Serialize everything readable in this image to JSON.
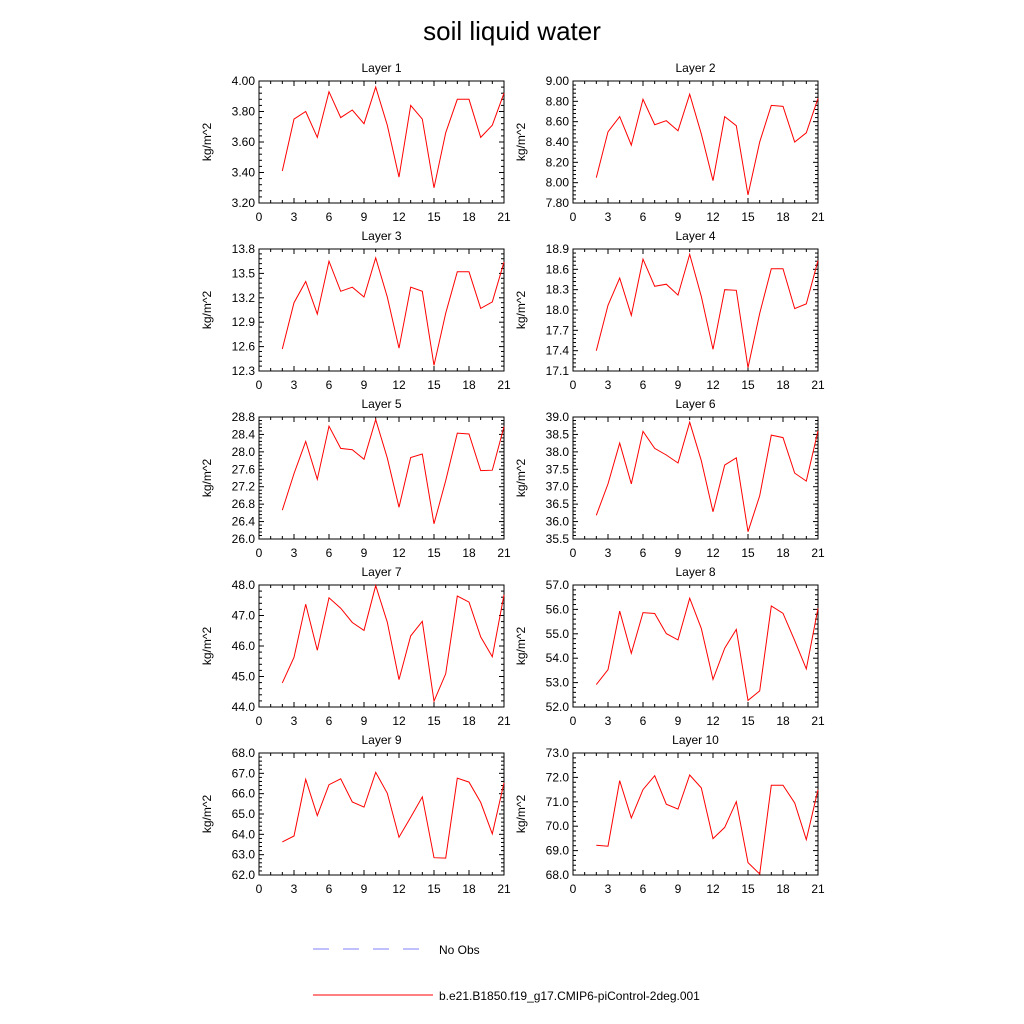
{
  "figure": {
    "title": "soil liquid water",
    "legend": [
      {
        "label": "No Obs",
        "color": "#8080ff",
        "style": "dashed"
      },
      {
        "label": "b.e21.B1850.f19_g17.CMIP6-piControl-2deg.001",
        "color": "#ff0000",
        "style": "solid"
      }
    ]
  },
  "chart_data": [
    {
      "type": "line",
      "title": "Layer 1",
      "ylabel": "kg/m^2",
      "xlim": [
        0,
        21
      ],
      "ylim": [
        3.2,
        4.0
      ],
      "xticks": [
        "0",
        "3",
        "6",
        "9",
        "12",
        "15",
        "18",
        "21"
      ],
      "yticks": [
        "3.20",
        "3.40",
        "3.60",
        "3.80",
        "4.00"
      ],
      "x": [
        2,
        3,
        4,
        5,
        6,
        7,
        8,
        9,
        10,
        11,
        12,
        13,
        14,
        15,
        16,
        17,
        18,
        19,
        20,
        21
      ],
      "series": [
        {
          "values": [
            3.41,
            3.75,
            3.8,
            3.63,
            3.93,
            3.76,
            3.81,
            3.72,
            3.96,
            3.71,
            3.37,
            3.84,
            3.75,
            3.3,
            3.66,
            3.88,
            3.88,
            3.63,
            3.71,
            3.92
          ]
        }
      ]
    },
    {
      "type": "line",
      "title": "Layer 2",
      "ylabel": "kg/m^2",
      "xlim": [
        0,
        21
      ],
      "ylim": [
        7.8,
        9.0
      ],
      "xticks": [
        "0",
        "3",
        "6",
        "9",
        "12",
        "15",
        "18",
        "21"
      ],
      "yticks": [
        "7.80",
        "8.00",
        "8.20",
        "8.40",
        "8.60",
        "8.80",
        "9.00"
      ],
      "x": [
        2,
        3,
        4,
        5,
        6,
        7,
        8,
        9,
        10,
        11,
        12,
        13,
        14,
        15,
        16,
        17,
        18,
        19,
        20,
        21
      ],
      "series": [
        {
          "values": [
            8.05,
            8.5,
            8.65,
            8.37,
            8.82,
            8.57,
            8.61,
            8.51,
            8.87,
            8.48,
            8.02,
            8.65,
            8.56,
            7.88,
            8.4,
            8.76,
            8.75,
            8.4,
            8.49,
            8.83
          ]
        }
      ]
    },
    {
      "type": "line",
      "title": "Layer 3",
      "ylabel": "kg/m^2",
      "xlim": [
        0,
        21
      ],
      "ylim": [
        12.3,
        13.8
      ],
      "xticks": [
        "0",
        "3",
        "6",
        "9",
        "12",
        "15",
        "18",
        "21"
      ],
      "yticks": [
        "12.3",
        "12.6",
        "12.9",
        "13.2",
        "13.5",
        "13.8"
      ],
      "x": [
        2,
        3,
        4,
        5,
        6,
        7,
        8,
        9,
        10,
        11,
        12,
        13,
        14,
        15,
        16,
        17,
        18,
        19,
        20,
        21
      ],
      "series": [
        {
          "values": [
            12.57,
            13.14,
            13.4,
            13.0,
            13.65,
            13.28,
            13.33,
            13.21,
            13.69,
            13.21,
            12.58,
            13.33,
            13.28,
            12.37,
            13.01,
            13.52,
            13.52,
            13.07,
            13.15,
            13.64
          ]
        }
      ]
    },
    {
      "type": "line",
      "title": "Layer 4",
      "ylabel": "kg/m^2",
      "xlim": [
        0,
        21
      ],
      "ylim": [
        17.1,
        18.9
      ],
      "xticks": [
        "0",
        "3",
        "6",
        "9",
        "12",
        "15",
        "18",
        "21"
      ],
      "yticks": [
        "17.1",
        "17.4",
        "17.7",
        "18.0",
        "18.3",
        "18.6",
        "18.9"
      ],
      "x": [
        2,
        3,
        4,
        5,
        6,
        7,
        8,
        9,
        10,
        11,
        12,
        13,
        14,
        15,
        16,
        17,
        18,
        19,
        20,
        21
      ],
      "series": [
        {
          "values": [
            17.4,
            18.07,
            18.47,
            17.92,
            18.75,
            18.35,
            18.38,
            18.22,
            18.82,
            18.2,
            17.42,
            18.3,
            18.29,
            17.15,
            17.95,
            18.61,
            18.61,
            18.02,
            18.09,
            18.73
          ]
        }
      ]
    },
    {
      "type": "line",
      "title": "Layer 5",
      "ylabel": "kg/m^2",
      "xlim": [
        0,
        21
      ],
      "ylim": [
        26.0,
        28.8
      ],
      "xticks": [
        "0",
        "3",
        "6",
        "9",
        "12",
        "15",
        "18",
        "21"
      ],
      "yticks": [
        "26.0",
        "26.4",
        "26.8",
        "27.2",
        "27.6",
        "28.0",
        "28.4",
        "28.8"
      ],
      "x": [
        2,
        3,
        4,
        5,
        6,
        7,
        8,
        9,
        10,
        11,
        12,
        13,
        14,
        15,
        16,
        17,
        18,
        19,
        20,
        21
      ],
      "series": [
        {
          "values": [
            26.66,
            27.5,
            28.24,
            27.37,
            28.59,
            28.08,
            28.05,
            27.83,
            28.74,
            27.86,
            26.73,
            27.87,
            27.95,
            26.35,
            27.34,
            28.43,
            28.41,
            27.57,
            27.58,
            28.58
          ]
        }
      ]
    },
    {
      "type": "line",
      "title": "Layer 6",
      "ylabel": "kg/m^2",
      "xlim": [
        0,
        21
      ],
      "ylim": [
        35.5,
        39.0
      ],
      "xticks": [
        "0",
        "3",
        "6",
        "9",
        "12",
        "15",
        "18",
        "21"
      ],
      "yticks": [
        "35.5",
        "36.0",
        "36.5",
        "37.0",
        "37.5",
        "38.0",
        "38.5",
        "39.0"
      ],
      "x": [
        2,
        3,
        4,
        5,
        6,
        7,
        8,
        9,
        10,
        11,
        12,
        13,
        14,
        15,
        16,
        17,
        18,
        19,
        20,
        21
      ],
      "series": [
        {
          "values": [
            36.18,
            37.08,
            38.25,
            37.08,
            38.59,
            38.1,
            37.91,
            37.68,
            38.85,
            37.75,
            36.28,
            37.62,
            37.83,
            35.71,
            36.74,
            38.48,
            38.41,
            37.39,
            37.16,
            38.6
          ]
        }
      ]
    },
    {
      "type": "line",
      "title": "Layer 7",
      "ylabel": "kg/m^2",
      "xlim": [
        0,
        21
      ],
      "ylim": [
        44.0,
        48.0
      ],
      "xticks": [
        "0",
        "3",
        "6",
        "9",
        "12",
        "15",
        "18",
        "21"
      ],
      "yticks": [
        "44.0",
        "45.0",
        "46.0",
        "47.0",
        "48.0"
      ],
      "x": [
        2,
        3,
        4,
        5,
        6,
        7,
        8,
        9,
        10,
        11,
        12,
        13,
        14,
        15,
        16,
        17,
        18,
        19,
        20,
        21
      ],
      "series": [
        {
          "values": [
            44.79,
            45.63,
            47.37,
            45.86,
            47.58,
            47.24,
            46.77,
            46.51,
            47.98,
            46.78,
            44.9,
            46.33,
            46.81,
            44.19,
            45.09,
            47.64,
            47.44,
            46.3,
            45.65,
            47.68
          ]
        }
      ]
    },
    {
      "type": "line",
      "title": "Layer 8",
      "ylabel": "kg/m^2",
      "xlim": [
        0,
        21
      ],
      "ylim": [
        52.0,
        57.0
      ],
      "xticks": [
        "0",
        "3",
        "6",
        "9",
        "12",
        "15",
        "18",
        "21"
      ],
      "yticks": [
        "52.0",
        "53.0",
        "54.0",
        "55.0",
        "56.0",
        "57.0"
      ],
      "x": [
        2,
        3,
        4,
        5,
        6,
        7,
        8,
        9,
        10,
        11,
        12,
        13,
        14,
        15,
        16,
        17,
        18,
        19,
        20,
        21
      ],
      "series": [
        {
          "values": [
            52.92,
            53.53,
            55.93,
            54.2,
            55.87,
            55.83,
            55.01,
            54.75,
            56.46,
            55.22,
            53.13,
            54.41,
            55.18,
            52.27,
            52.66,
            56.14,
            55.84,
            54.72,
            53.56,
            56.04
          ]
        }
      ]
    },
    {
      "type": "line",
      "title": "Layer 9",
      "ylabel": "kg/m^2",
      "xlim": [
        0,
        21
      ],
      "ylim": [
        62.0,
        68.0
      ],
      "xticks": [
        "0",
        "3",
        "6",
        "9",
        "12",
        "15",
        "18",
        "21"
      ],
      "yticks": [
        "62.0",
        "63.0",
        "64.0",
        "65.0",
        "66.0",
        "67.0",
        "68.0"
      ],
      "x": [
        2,
        3,
        4,
        5,
        6,
        7,
        8,
        9,
        10,
        11,
        12,
        13,
        14,
        15,
        16,
        17,
        18,
        19,
        20,
        21
      ],
      "series": [
        {
          "values": [
            63.63,
            63.92,
            66.7,
            64.92,
            66.44,
            66.73,
            65.59,
            65.34,
            67.05,
            66.02,
            63.86,
            64.84,
            65.84,
            62.85,
            62.83,
            66.76,
            66.57,
            65.57,
            64.02,
            66.53
          ]
        }
      ]
    },
    {
      "type": "line",
      "title": "Layer 10",
      "ylabel": "kg/m^2",
      "xlim": [
        0,
        21
      ],
      "ylim": [
        68.0,
        73.0
      ],
      "xticks": [
        "0",
        "3",
        "6",
        "9",
        "12",
        "15",
        "18",
        "21"
      ],
      "yticks": [
        "68.0",
        "69.0",
        "70.0",
        "71.0",
        "72.0",
        "73.0"
      ],
      "x": [
        2,
        3,
        4,
        5,
        6,
        7,
        8,
        9,
        10,
        11,
        12,
        13,
        14,
        15,
        16,
        17,
        18,
        19,
        20,
        21
      ],
      "series": [
        {
          "values": [
            69.22,
            69.18,
            71.87,
            70.34,
            71.5,
            72.07,
            70.9,
            70.7,
            72.1,
            71.57,
            69.49,
            69.95,
            71.01,
            68.51,
            68.04,
            71.68,
            71.68,
            70.95,
            69.45,
            71.49
          ]
        }
      ]
    }
  ]
}
